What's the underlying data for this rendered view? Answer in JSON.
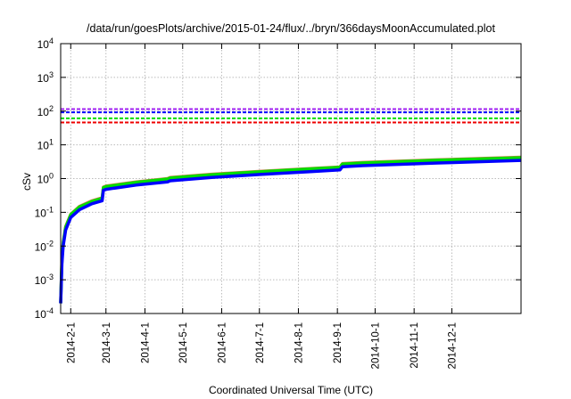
{
  "chart_data": {
    "type": "line",
    "title": "/data/run/goesPlots/archive/2015-01-24/flux/../bryn/366daysMoonAccumulated.plot",
    "xlabel": "Coordinated Universal Time (UTC)",
    "ylabel": "cSv",
    "x_unit": "days since 2014-01-24",
    "xlim": [
      0,
      366
    ],
    "ylim": [
      0.0001,
      10000
    ],
    "yscale": "log",
    "grid": true,
    "y_ticks": [
      {
        "base": "10",
        "exp": "-4",
        "value": 0.0001
      },
      {
        "base": "10",
        "exp": "-3",
        "value": 0.001
      },
      {
        "base": "10",
        "exp": "-2",
        "value": 0.01
      },
      {
        "base": "10",
        "exp": "-1",
        "value": 0.1
      },
      {
        "base": "10",
        "exp": "0",
        "value": 1
      },
      {
        "base": "10",
        "exp": "1",
        "value": 10
      },
      {
        "base": "10",
        "exp": "2",
        "value": 100
      },
      {
        "base": "10",
        "exp": "3",
        "value": 1000
      },
      {
        "base": "10",
        "exp": "4",
        "value": 10000
      }
    ],
    "x_ticks": [
      {
        "label": "2014-2-1",
        "day": 8
      },
      {
        "label": "2014-3-1",
        "day": 36
      },
      {
        "label": "2014-4-1",
        "day": 67
      },
      {
        "label": "2014-5-1",
        "day": 97
      },
      {
        "label": "2014-6-1",
        "day": 128
      },
      {
        "label": "2014-7-1",
        "day": 158
      },
      {
        "label": "2014-8-1",
        "day": 189
      },
      {
        "label": "2014-9-1",
        "day": 220
      },
      {
        "label": "2014-10-1",
        "day": 250
      },
      {
        "label": "2014-11-1",
        "day": 281
      },
      {
        "label": "2014-12-1",
        "day": 311
      }
    ],
    "thresholds": [
      {
        "color": "#a020f0",
        "value": 115
      },
      {
        "color": "#0000ff",
        "value": 92
      },
      {
        "color": "#00dd00",
        "value": 61
      },
      {
        "color": "#ee0000",
        "value": 46
      }
    ],
    "series": [
      {
        "color": "#d08050",
        "x": [
          0,
          1,
          2,
          4,
          8,
          15,
          25,
          33,
          34,
          36,
          60,
          85,
          87,
          120,
          160,
          200,
          222,
          224,
          240,
          300,
          366
        ],
        "y": [
          0.0002,
          0.004,
          0.013,
          0.038,
          0.088,
          0.15,
          0.22,
          0.27,
          0.56,
          0.6,
          0.8,
          1.0,
          1.08,
          1.35,
          1.65,
          2.0,
          2.2,
          2.8,
          3.0,
          3.6,
          4.3
        ]
      },
      {
        "color": "#00dd00",
        "x": [
          0,
          1,
          2,
          4,
          8,
          15,
          25,
          33,
          34,
          36,
          60,
          85,
          87,
          120,
          160,
          200,
          222,
          224,
          240,
          300,
          366
        ],
        "y": [
          0.0002,
          0.004,
          0.012,
          0.036,
          0.085,
          0.145,
          0.21,
          0.26,
          0.54,
          0.58,
          0.77,
          0.97,
          1.04,
          1.3,
          1.6,
          1.95,
          2.15,
          2.7,
          2.9,
          3.5,
          4.15
        ]
      },
      {
        "color": "#0000ff",
        "x": [
          0,
          1,
          2,
          4,
          8,
          15,
          25,
          33,
          34,
          36,
          60,
          85,
          87,
          120,
          160,
          200,
          222,
          224,
          240,
          300,
          366
        ],
        "y": [
          0.0002,
          0.003,
          0.01,
          0.03,
          0.07,
          0.12,
          0.18,
          0.22,
          0.45,
          0.48,
          0.64,
          0.8,
          0.86,
          1.08,
          1.33,
          1.62,
          1.8,
          2.25,
          2.42,
          2.9,
          3.45
        ]
      }
    ]
  }
}
